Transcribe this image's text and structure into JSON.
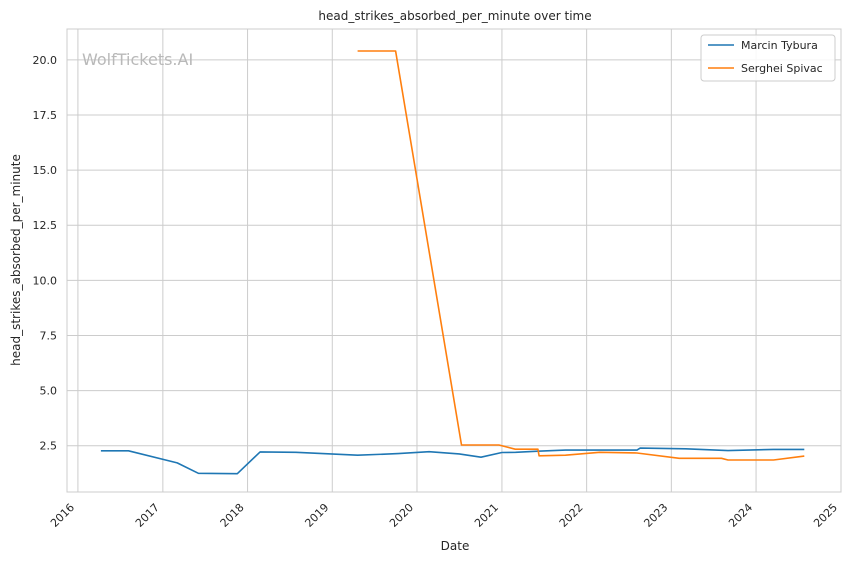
{
  "chart_data": {
    "type": "line",
    "title": "head_strikes_absorbed_per_minute over time",
    "xlabel": "Date",
    "ylabel": "head_strikes_absorbed_per_minute",
    "watermark": "WolfTickets.AI",
    "xlim": [
      "2015-11-15",
      "2025-01-01"
    ],
    "ylim": [
      0.4,
      21.4
    ],
    "x_ticks": [
      "2016",
      "2017",
      "2018",
      "2019",
      "2020",
      "2021",
      "2022",
      "2023",
      "2024",
      "2025"
    ],
    "y_ticks": [
      "2.5",
      "5.0",
      "7.5",
      "10.0",
      "12.5",
      "15.0",
      "17.5",
      "20.0"
    ],
    "grid": true,
    "legend_position": "top-right",
    "series": [
      {
        "name": "Marcin Tybura",
        "color": "#1f77b4",
        "points": [
          [
            "2016-04-09",
            2.27
          ],
          [
            "2016-08-06",
            2.27
          ],
          [
            "2017-03-04",
            1.72
          ],
          [
            "2017-06-03",
            1.25
          ],
          [
            "2017-11-18",
            1.23
          ],
          [
            "2018-02-24",
            2.22
          ],
          [
            "2018-07-28",
            2.2
          ],
          [
            "2019-04-20",
            2.07
          ],
          [
            "2019-10-12",
            2.14
          ],
          [
            "2020-02-22",
            2.23
          ],
          [
            "2020-07-01",
            2.13
          ],
          [
            "2020-10-03",
            1.98
          ],
          [
            "2021-01-01",
            2.19
          ],
          [
            "2021-03-01",
            2.2
          ],
          [
            "2021-06-05",
            2.25
          ],
          [
            "2021-10-02",
            2.3
          ],
          [
            "2022-08-06",
            2.3
          ],
          [
            "2022-08-20",
            2.39
          ],
          [
            "2023-03-04",
            2.36
          ],
          [
            "2023-09-02",
            2.28
          ],
          [
            "2024-03-16",
            2.33
          ],
          [
            "2024-07-27",
            2.33
          ]
        ]
      },
      {
        "name": "Serghei Spivac",
        "color": "#ff7f0e",
        "points": [
          [
            "2019-04-20",
            20.4
          ],
          [
            "2019-10-01",
            20.4
          ],
          [
            "2020-07-11",
            2.53
          ],
          [
            "2020-12-19",
            2.53
          ],
          [
            "2021-02-27",
            2.34
          ],
          [
            "2021-06-05",
            2.34
          ],
          [
            "2021-06-10",
            2.04
          ],
          [
            "2021-10-02",
            2.07
          ],
          [
            "2022-02-26",
            2.2
          ],
          [
            "2022-08-06",
            2.17
          ],
          [
            "2023-02-04",
            1.93
          ],
          [
            "2023-08-05",
            1.93
          ],
          [
            "2023-09-02",
            1.85
          ],
          [
            "2024-03-16",
            1.85
          ],
          [
            "2024-07-27",
            2.03
          ]
        ]
      }
    ]
  }
}
